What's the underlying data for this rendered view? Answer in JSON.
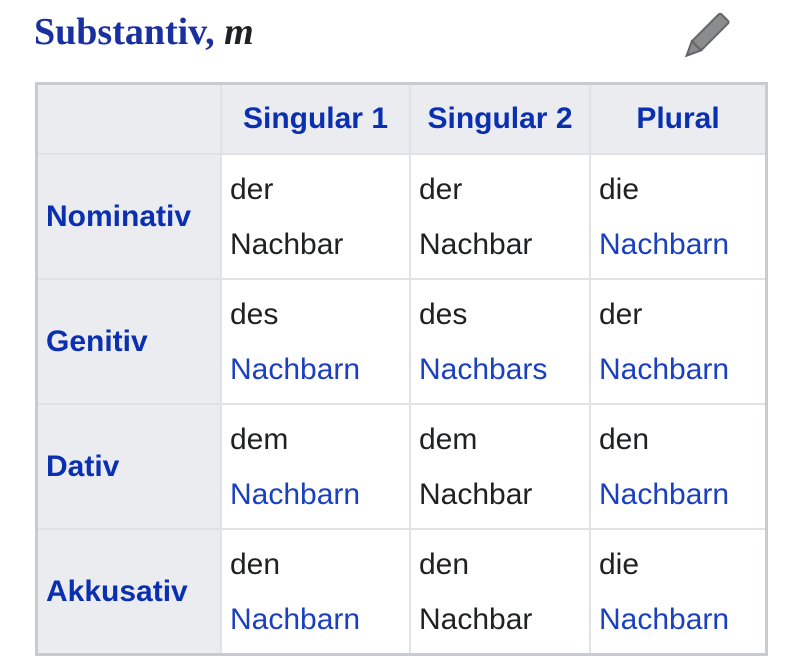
{
  "title": {
    "text": "Substantiv",
    "gender": "m"
  },
  "edit_icon": "pencil-icon",
  "columns": [
    "",
    "Singular 1",
    "Singular 2",
    "Plural"
  ],
  "rows": [
    {
      "case": "Nominativ",
      "cells": [
        {
          "article": "der",
          "noun": "Nachbar",
          "link": false
        },
        {
          "article": "der",
          "noun": "Nachbar",
          "link": false
        },
        {
          "article": "die",
          "noun": "Nachbarn",
          "link": true
        }
      ]
    },
    {
      "case": "Genitiv",
      "cells": [
        {
          "article": "des",
          "noun": "Nachbarn",
          "link": true
        },
        {
          "article": "des",
          "noun": "Nachbars",
          "link": true
        },
        {
          "article": "der",
          "noun": "Nachbarn",
          "link": true
        }
      ]
    },
    {
      "case": "Dativ",
      "cells": [
        {
          "article": "dem",
          "noun": "Nachbarn",
          "link": true
        },
        {
          "article": "dem",
          "noun": "Nachbar",
          "link": false
        },
        {
          "article": "den",
          "noun": "Nachbarn",
          "link": true
        }
      ]
    },
    {
      "case": "Akkusativ",
      "cells": [
        {
          "article": "den",
          "noun": "Nachbarn",
          "link": true
        },
        {
          "article": "den",
          "noun": "Nachbar",
          "link": false
        },
        {
          "article": "die",
          "noun": "Nachbarn",
          "link": true
        }
      ]
    }
  ],
  "colors": {
    "header_text": "#0a2fb0",
    "link": "#1a3fc0",
    "header_bg": "#eaecf0"
  }
}
